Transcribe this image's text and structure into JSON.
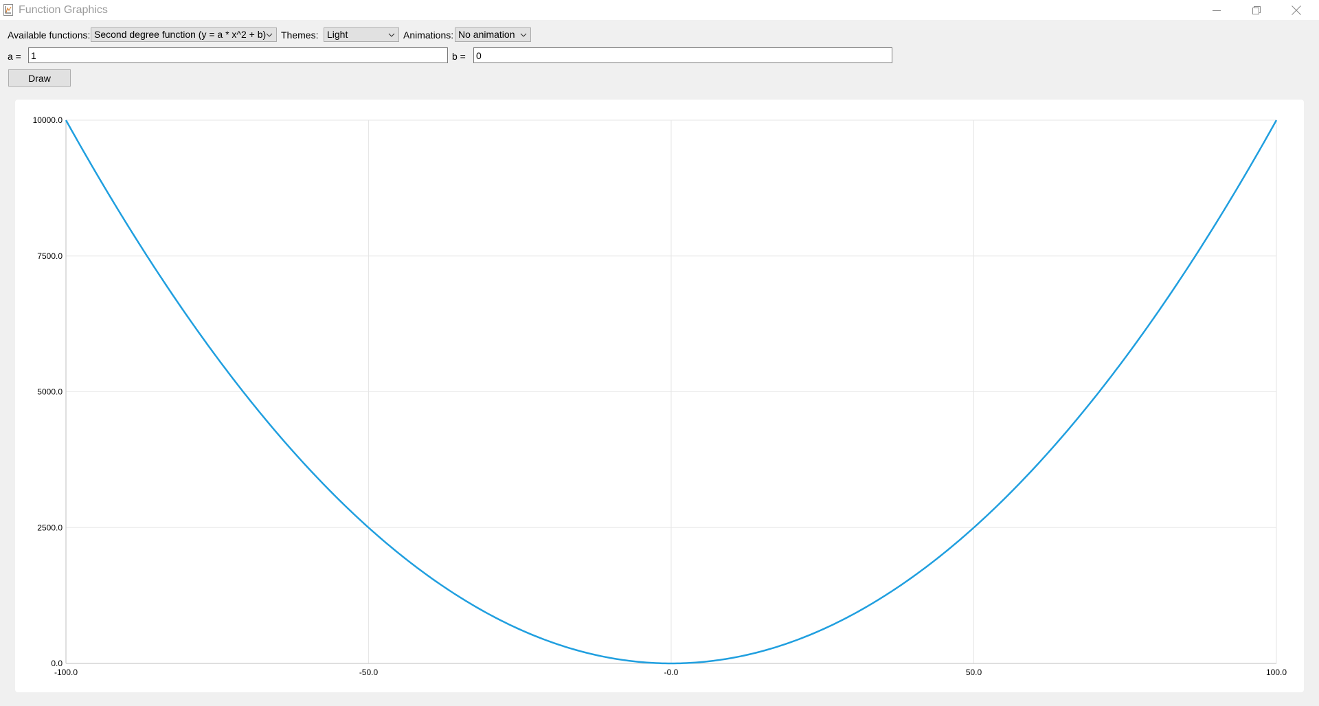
{
  "window": {
    "title": "Function Graphics"
  },
  "controls": {
    "functions_label": "Available functions:",
    "functions_value": "Second degree function (y = a * x^2 + b)",
    "themes_label": "Themes:",
    "themes_value": "Light",
    "animations_label": "Animations:",
    "animations_value": "No animation",
    "a_label": "a =",
    "a_value": "1",
    "b_label": "b =",
    "b_value": "0",
    "draw_label": "Draw"
  },
  "colors": {
    "series": "#209fdf",
    "grid": "#e6e6e6"
  },
  "chart_data": {
    "type": "line",
    "function": "y = a * x^2 + b",
    "a": 1,
    "b": 0,
    "x": [
      -100,
      -90,
      -80,
      -70,
      -60,
      -50,
      -40,
      -30,
      -20,
      -10,
      0,
      10,
      20,
      30,
      40,
      50,
      60,
      70,
      80,
      90,
      100
    ],
    "y": [
      10000,
      8100,
      6400,
      4900,
      3600,
      2500,
      1600,
      900,
      400,
      100,
      0,
      100,
      400,
      900,
      1600,
      2500,
      3600,
      4900,
      6400,
      8100,
      10000
    ],
    "xlim": [
      -100,
      100
    ],
    "ylim": [
      0,
      10000
    ],
    "xticks": [
      "-100.0",
      "-50.0",
      "-0.0",
      "50.0",
      "100.0"
    ],
    "yticks": [
      "0.0",
      "2500.0",
      "5000.0",
      "7500.0",
      "10000.0"
    ],
    "grid": true,
    "legend": "none"
  }
}
